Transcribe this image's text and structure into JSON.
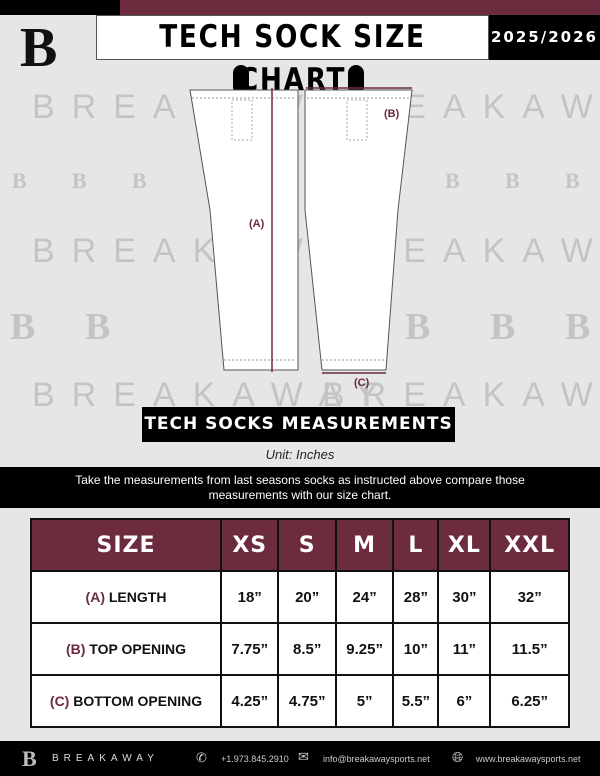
{
  "header": {
    "title": "TECH SOCK SIZE CHART",
    "season": "2025/2026"
  },
  "brand": {
    "watermark": "BREAKAWAY",
    "logo_letter": "B"
  },
  "diagram": {
    "label_a": "(A)",
    "label_b": "(B)",
    "label_c": "(C)"
  },
  "section": {
    "title": "TECH SOCKS MEASUREMENTS",
    "unit": "Unit: Inches",
    "instructions": "Take the measurements from last seasons socks as instructed above compare those measurements  with our size chart."
  },
  "table": {
    "headers": [
      "SIZE",
      "XS",
      "S",
      "M",
      "L",
      "XL",
      "XXL"
    ],
    "rows": [
      {
        "key": "(A)",
        "label": "LENGTH",
        "values": [
          "18”",
          "20”",
          "24”",
          "28”",
          "30”",
          "32”"
        ]
      },
      {
        "key": "(B)",
        "label": "TOP OPENING",
        "values": [
          "7.75”",
          "8.5”",
          "9.25”",
          "10”",
          "11”",
          "11.5”"
        ]
      },
      {
        "key": "(C)",
        "label": "BOTTOM OPENING",
        "values": [
          "4.25”",
          "4.75”",
          "5”",
          "5.5”",
          "6”",
          "6.25”"
        ]
      }
    ]
  },
  "footer": {
    "brand": "BREAKAWAY",
    "phone": "+1.973.845.2910",
    "email": "info@breakawaysports.net",
    "website": "www.breakawaysports.net"
  },
  "colors": {
    "accent": "#6d2b3e",
    "dark": "#000000",
    "background": "#e6e6e7"
  }
}
